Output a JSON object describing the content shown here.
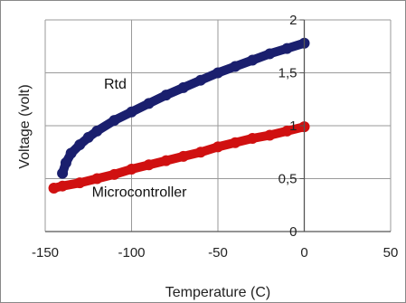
{
  "chart_data": {
    "type": "line",
    "xlabel": "Temperature (C)",
    "ylabel": "Voltage (volt)",
    "xlim": [
      -150,
      50
    ],
    "ylim": [
      0,
      2
    ],
    "x_ticks": [
      -150,
      -100,
      -50,
      0,
      50
    ],
    "x_tick_labels": [
      "-150",
      "-100",
      "-50",
      "0",
      "50"
    ],
    "y_ticks": [
      0,
      0.5,
      1,
      1.5,
      2
    ],
    "y_tick_labels": [
      "0",
      "0,5",
      "1",
      "1,5",
      "2"
    ],
    "grid": "vertical-and-horizontal",
    "series": [
      {
        "name": "Rtd",
        "color": "#1a1f6e",
        "x": [
          -140,
          -138,
          -135,
          -130,
          -125,
          -120,
          -110,
          -100,
          -90,
          -80,
          -70,
          -60,
          -50,
          -40,
          -30,
          -20,
          -10,
          0
        ],
        "values": [
          0.55,
          0.65,
          0.74,
          0.82,
          0.89,
          0.95,
          1.05,
          1.13,
          1.21,
          1.29,
          1.36,
          1.43,
          1.5,
          1.56,
          1.62,
          1.68,
          1.73,
          1.78
        ]
      },
      {
        "name": "Microcontroller",
        "color": "#d01010",
        "x": [
          -145,
          -140,
          -130,
          -120,
          -110,
          -100,
          -90,
          -80,
          -70,
          -60,
          -50,
          -40,
          -30,
          -20,
          -10,
          0
        ],
        "values": [
          0.41,
          0.43,
          0.46,
          0.5,
          0.54,
          0.59,
          0.63,
          0.67,
          0.71,
          0.75,
          0.8,
          0.84,
          0.88,
          0.91,
          0.95,
          0.99
        ]
      }
    ],
    "annotations": [
      {
        "text": "Rtd",
        "x": -116,
        "y": 1.35
      },
      {
        "text": "Microcontroller",
        "x": -123,
        "y": 0.33
      }
    ]
  }
}
